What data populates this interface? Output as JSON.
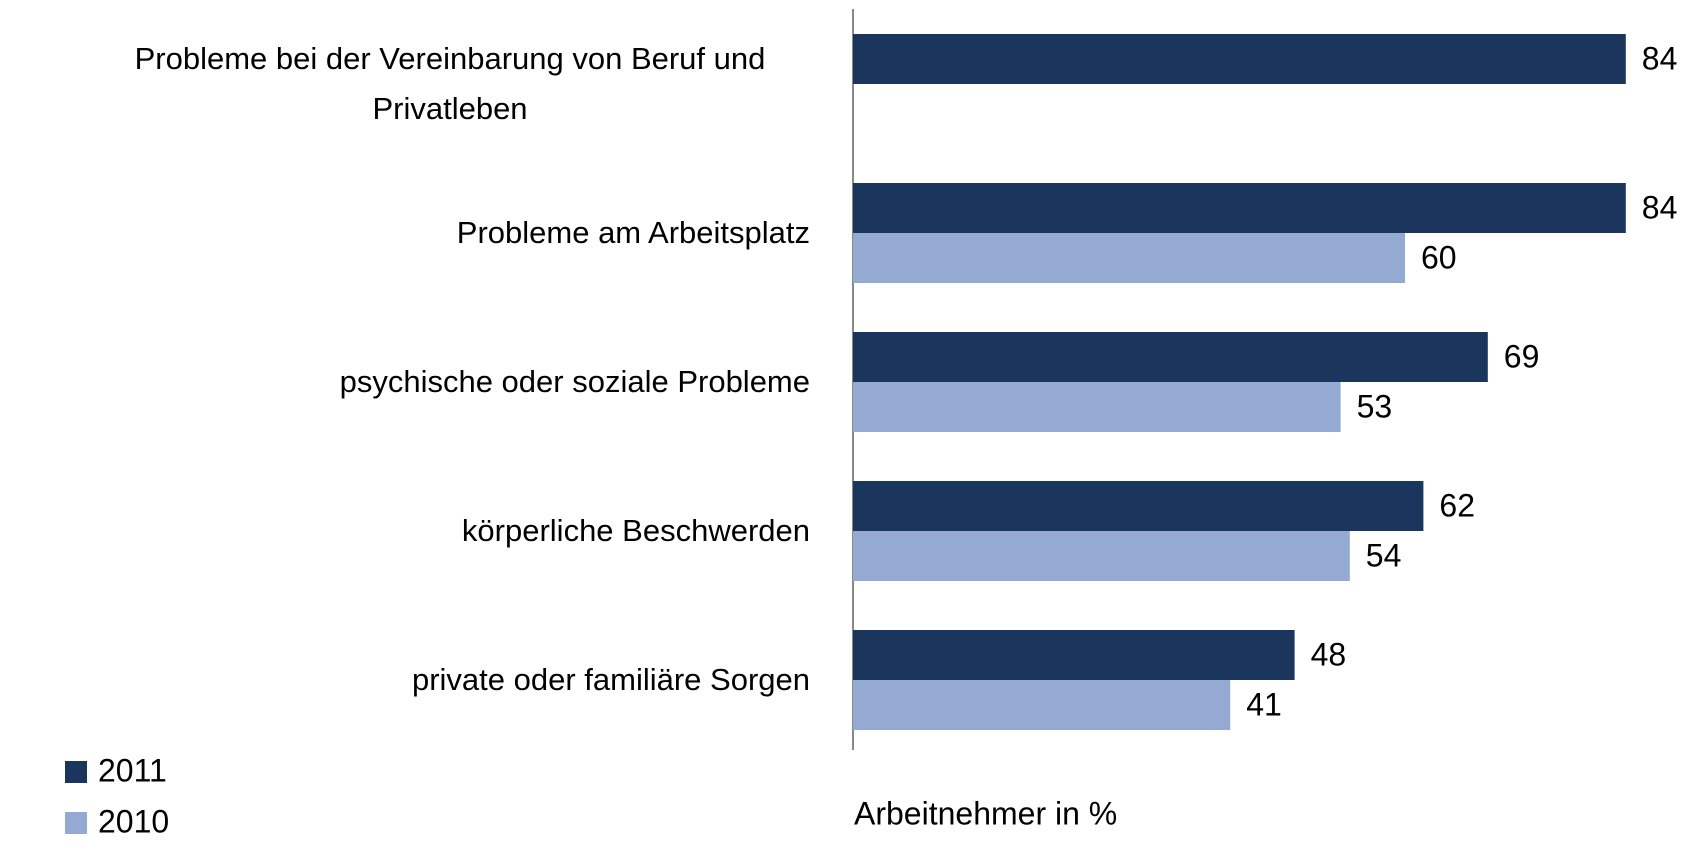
{
  "chart_data": {
    "type": "bar",
    "orientation": "horizontal",
    "categories": [
      "Probleme bei der Vereinbarung von Beruf und Privatleben",
      "Probleme am Arbeitsplatz",
      "psychische oder soziale Probleme",
      "körperliche Beschwerden",
      "private oder familiäre Sorgen"
    ],
    "series": [
      {
        "name": "2011",
        "color": "#1b365d",
        "values": [
          84,
          84,
          69,
          62,
          48
        ]
      },
      {
        "name": "2010",
        "color": "#95aad3",
        "values": [
          null,
          60,
          53,
          54,
          41
        ]
      }
    ],
    "x_label": "Arbeitnehmer in %"
  }
}
